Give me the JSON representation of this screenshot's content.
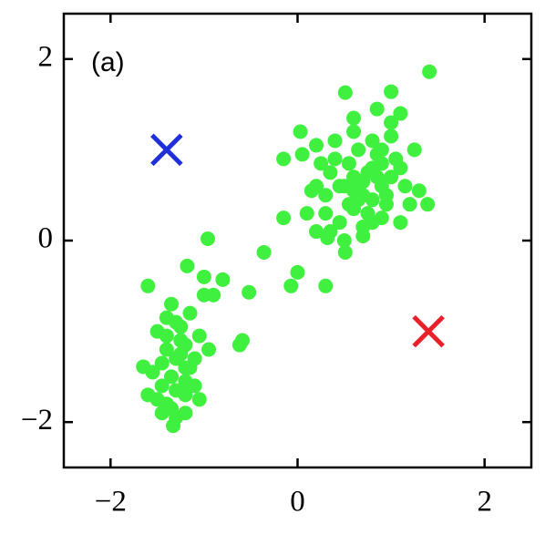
{
  "chart_data": {
    "type": "scatter",
    "annotation": "(a)",
    "xlim": [
      -2.5,
      2.5
    ],
    "ylim": [
      -2.5,
      2.5
    ],
    "xticks": [
      {
        "value": -2,
        "label": "−2"
      },
      0,
      2
    ],
    "yticks": [
      {
        "value": -2,
        "label": "−2"
      },
      0,
      2
    ],
    "grid": false,
    "series": [
      {
        "color": "#3ff03f",
        "marker": "o",
        "x": [
          0.5,
          0.6,
          0.7,
          0.8,
          0.9,
          1.0,
          0.4,
          0.3,
          0.2,
          0.55,
          0.65,
          0.75,
          0.85,
          0.95,
          1.05,
          1.15,
          0.45,
          0.35,
          0.25,
          0.6,
          0.7,
          0.8,
          0.9,
          1.0,
          1.1,
          0.5,
          0.4,
          0.3,
          0.6,
          0.8,
          0.9,
          1.2,
          1.25,
          0.15,
          0.1,
          0.2,
          0.7,
          0.85,
          0.55,
          0.65,
          0.75,
          1.3,
          0.95,
          0.05,
          0.45,
          0.6,
          0.8,
          1.0,
          0.35,
          0.7,
          1.41,
          0.51,
          1.0,
          0.03,
          -0.15,
          -0.15,
          1.39,
          0.32,
          0.51,
          1.1,
          0.3,
          -0.07,
          -0.36,
          -0.96,
          0.0,
          0.2,
          0.85,
          1.1,
          0.6,
          0.9,
          -1.3,
          -1.4,
          -1.2,
          -1.35,
          -1.25,
          -1.5,
          -1.1,
          -1.45,
          -1.3,
          -1.2,
          -1.4,
          -1.15,
          -1.55,
          -1.05,
          -1.3,
          -1.25,
          -1.35,
          -1.45,
          -1.2,
          -1.1,
          -1.4,
          -1.3,
          -1.0,
          -1.5,
          -1.2,
          -1.35,
          -1.25,
          -1.15,
          -1.05,
          -1.4,
          -1.65,
          -1.33,
          -1.6,
          -1.18,
          -0.8,
          -0.52,
          -0.59,
          -0.62,
          -0.9,
          -1.0,
          -1.2,
          -1.45,
          -1.6,
          -0.95
        ],
        "y": [
          0.6,
          0.7,
          0.5,
          0.8,
          0.6,
          0.7,
          0.9,
          0.5,
          0.6,
          0.4,
          1.0,
          0.3,
          0.95,
          0.4,
          0.9,
          0.6,
          0.2,
          0.75,
          0.85,
          1.2,
          0.15,
          1.1,
          0.25,
          1.3,
          0.8,
          0.0,
          1.1,
          0.3,
          0.55,
          0.45,
          0.85,
          0.4,
          1.0,
          0.55,
          0.3,
          1.05,
          0.65,
          0.7,
          0.85,
          0.45,
          0.75,
          0.55,
          0.5,
          0.95,
          0.6,
          0.35,
          0.2,
          1.15,
          0.1,
          0.05,
          1.86,
          1.63,
          1.64,
          1.2,
          0.9,
          0.25,
          0.4,
          0.03,
          -0.13,
          0.2,
          -0.5,
          -0.5,
          -0.13,
          0.02,
          -0.35,
          0.1,
          1.45,
          1.4,
          1.35,
          1.0,
          -1.3,
          -1.2,
          -1.4,
          -1.5,
          -1.1,
          -1.0,
          -1.3,
          -1.6,
          -0.9,
          -1.7,
          -1.8,
          -0.8,
          -1.45,
          -1.05,
          -1.95,
          -1.25,
          -0.7,
          -1.35,
          -1.55,
          -1.6,
          -0.85,
          -1.65,
          -0.6,
          -1.75,
          -1.15,
          -1.85,
          -0.95,
          -1.4,
          -1.75,
          -1.05,
          -1.39,
          -2.04,
          -0.5,
          -0.28,
          -0.43,
          -0.57,
          -1.1,
          -1.15,
          -0.6,
          -0.4,
          -1.9,
          -1.9,
          -1.7,
          -1.2
        ]
      },
      {
        "color": "#1f2fd9",
        "marker": "x",
        "x": [
          -1.4
        ],
        "y": [
          1.0
        ]
      },
      {
        "color": "#e8202a",
        "marker": "x",
        "x": [
          1.4
        ],
        "y": [
          -1.0
        ]
      }
    ]
  }
}
